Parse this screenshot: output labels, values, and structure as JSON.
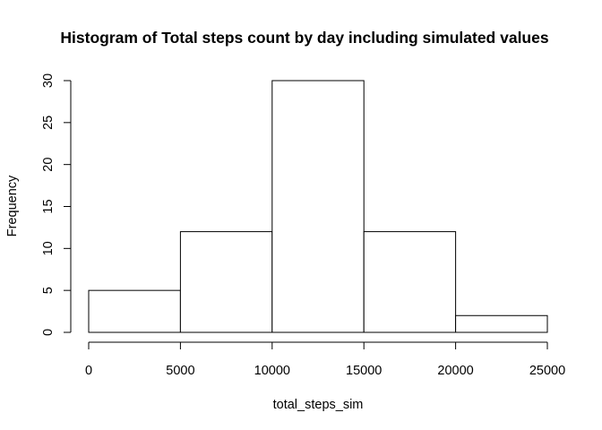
{
  "chart_data": {
    "type": "bar",
    "subtype": "histogram",
    "title": "Histogram of Total steps count by day including simulated values",
    "xlabel": "total_steps_sim",
    "ylabel": "Frequency",
    "bins": [
      {
        "from": 0,
        "to": 5000,
        "count": 5
      },
      {
        "from": 5000,
        "to": 10000,
        "count": 12
      },
      {
        "from": 10000,
        "to": 15000,
        "count": 30
      },
      {
        "from": 15000,
        "to": 20000,
        "count": 12
      },
      {
        "from": 20000,
        "to": 25000,
        "count": 2
      }
    ],
    "xlim": [
      0,
      25000
    ],
    "ylim": [
      0,
      30
    ],
    "x_ticks": [
      0,
      5000,
      10000,
      15000,
      20000,
      25000
    ],
    "x_tick_labels": [
      "0",
      "5000",
      "10000",
      "15000",
      "20000",
      "25000"
    ],
    "y_ticks": [
      0,
      5,
      10,
      15,
      20,
      25,
      30
    ],
    "y_tick_labels": [
      "0",
      "5",
      "10",
      "15",
      "20",
      "25",
      "30"
    ],
    "grid": false,
    "legend": "none",
    "bar_fill": "#ffffff",
    "bar_stroke": "#000000"
  }
}
